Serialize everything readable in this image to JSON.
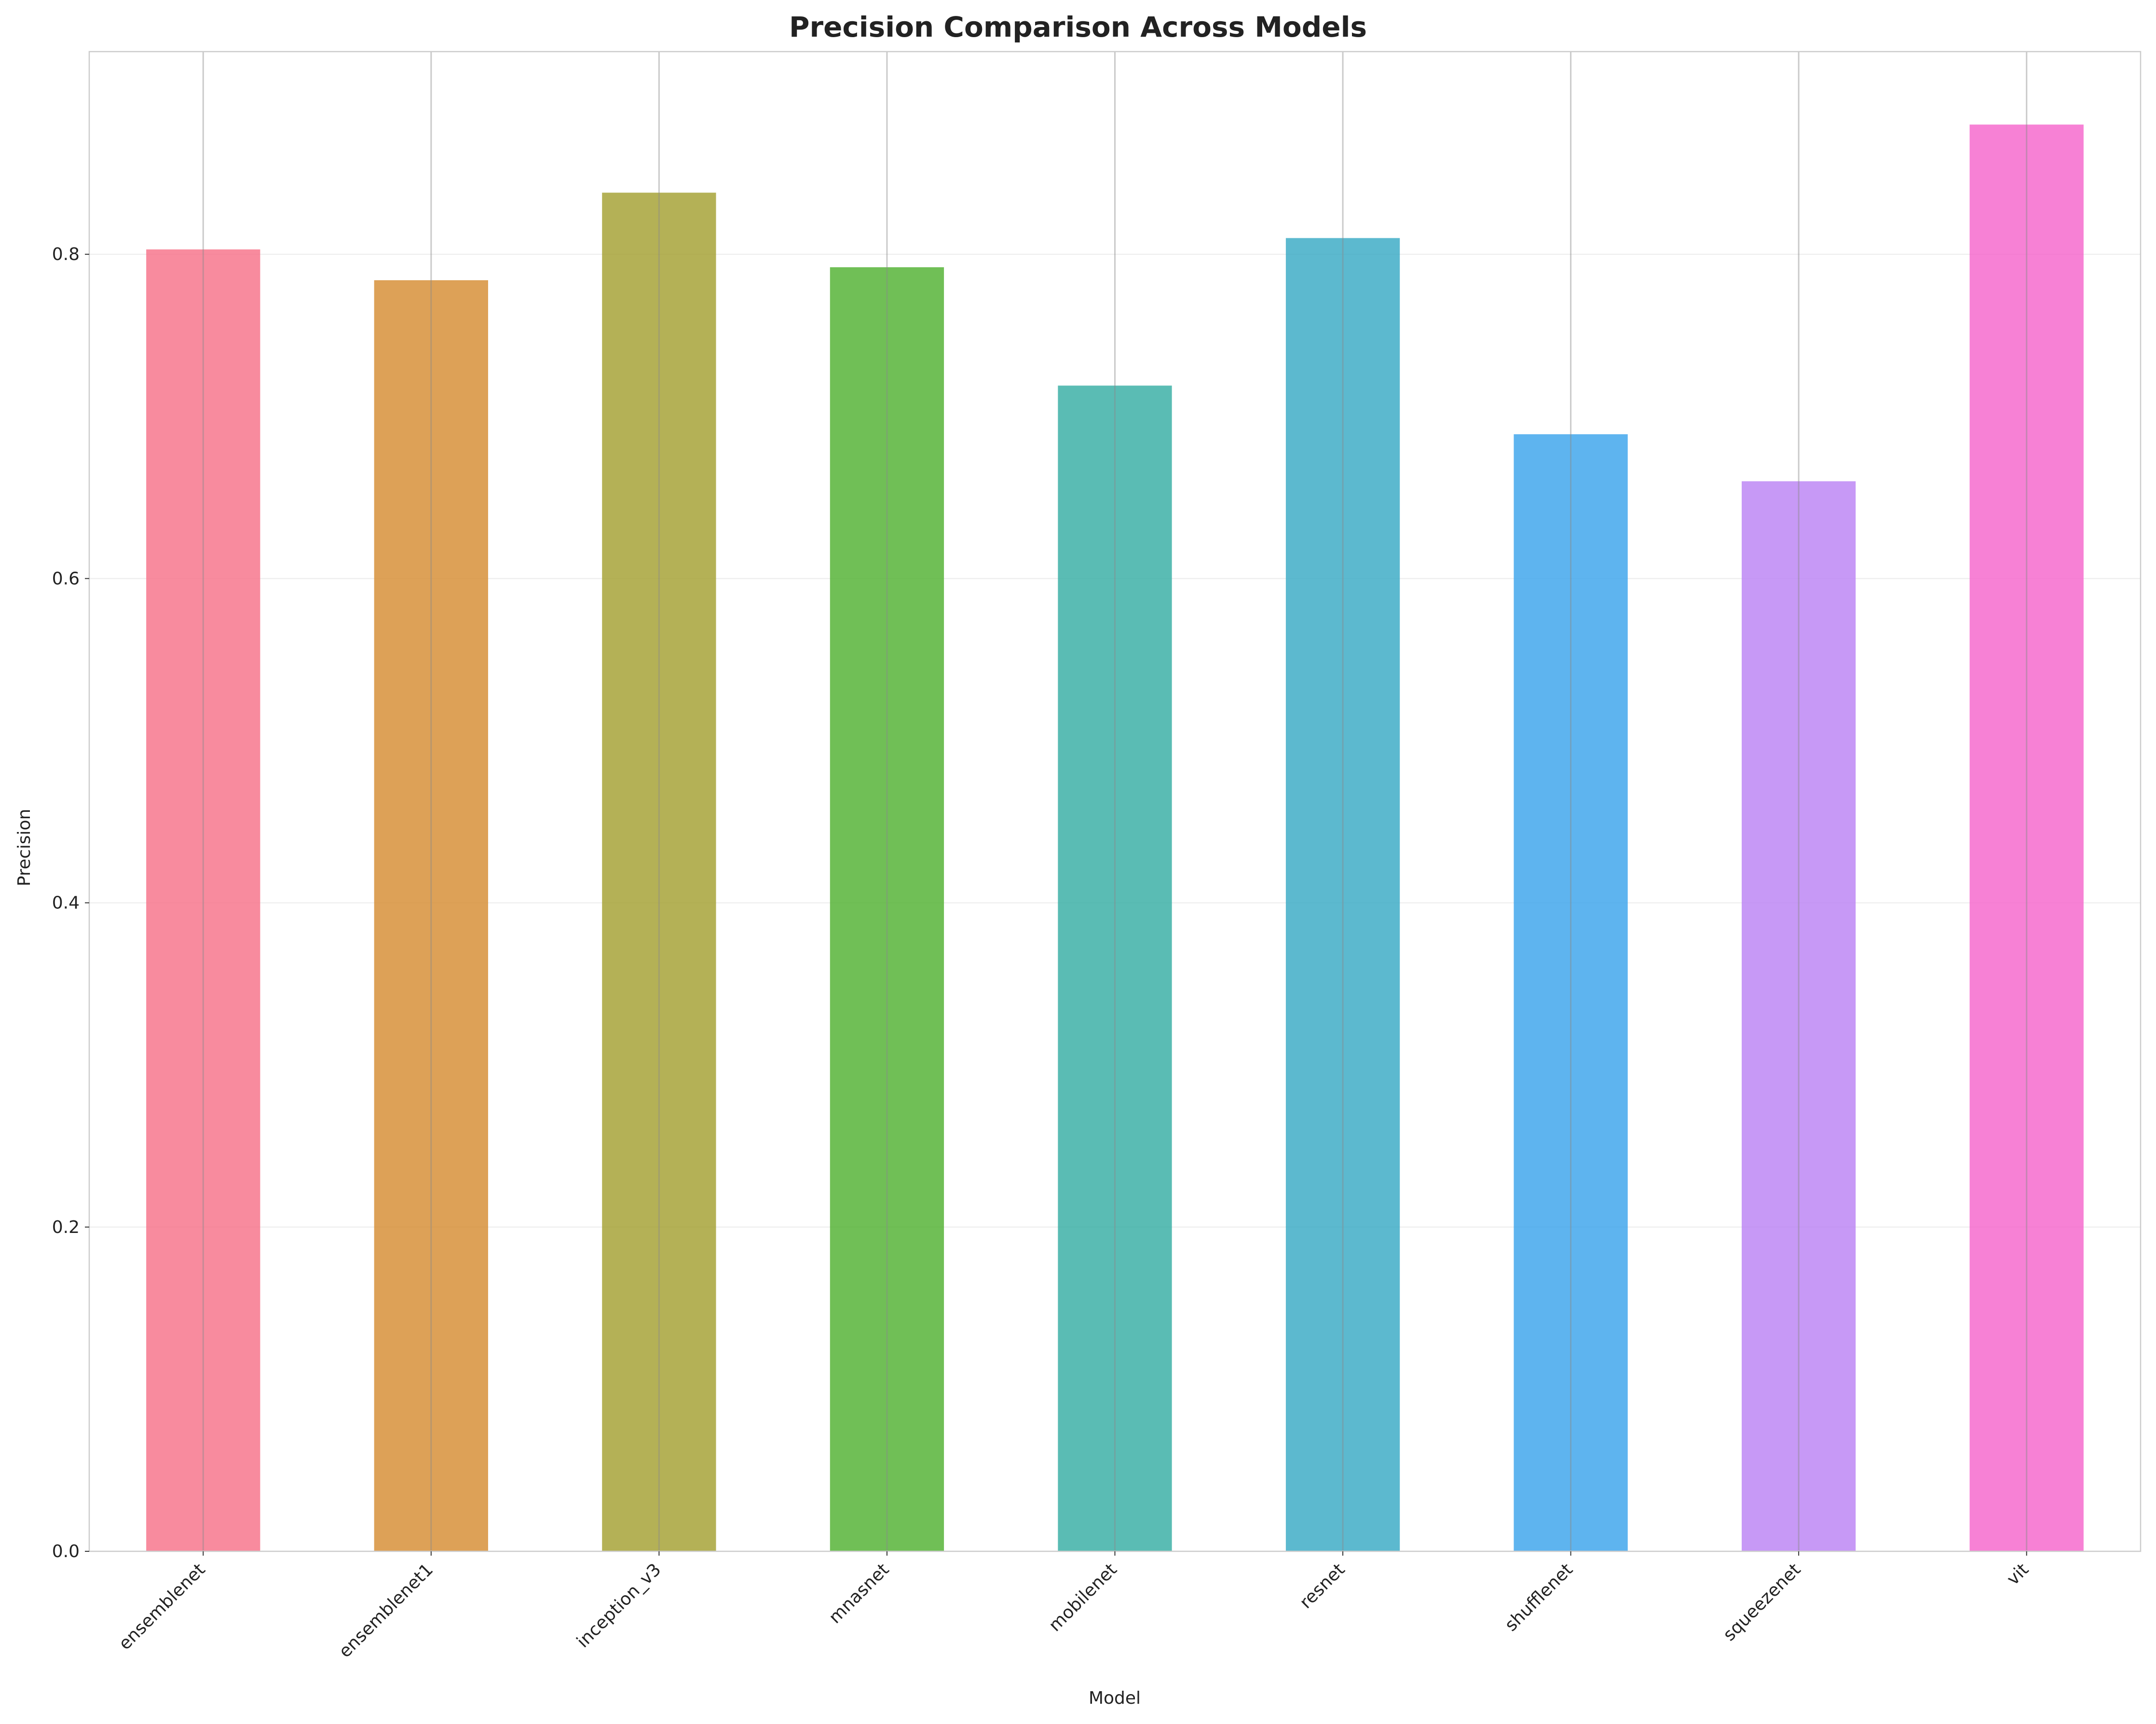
{
  "chart_data": {
    "type": "bar",
    "title": "Precision Comparison Across Models",
    "xlabel": "Model",
    "ylabel": "Precision",
    "categories": [
      "ensemblenet",
      "ensemblenet1",
      "inception_v3",
      "mnasnet",
      "mobilenet",
      "resnet",
      "shufflenet",
      "squeezenet",
      "vit"
    ],
    "values": [
      0.803,
      0.784,
      0.838,
      0.792,
      0.719,
      0.81,
      0.689,
      0.66,
      0.88
    ],
    "colors": [
      "#f77189",
      "#d58c32",
      "#a4a031",
      "#50b131",
      "#36ada4",
      "#38a9c5",
      "#3ba3ec",
      "#bb83f4",
      "#f565cc"
    ],
    "ylim": [
      0,
      0.925
    ],
    "yticks": [
      "0.0",
      "0.2",
      "0.4",
      "0.6",
      "0.8"
    ],
    "grid": true,
    "legend": "none"
  }
}
